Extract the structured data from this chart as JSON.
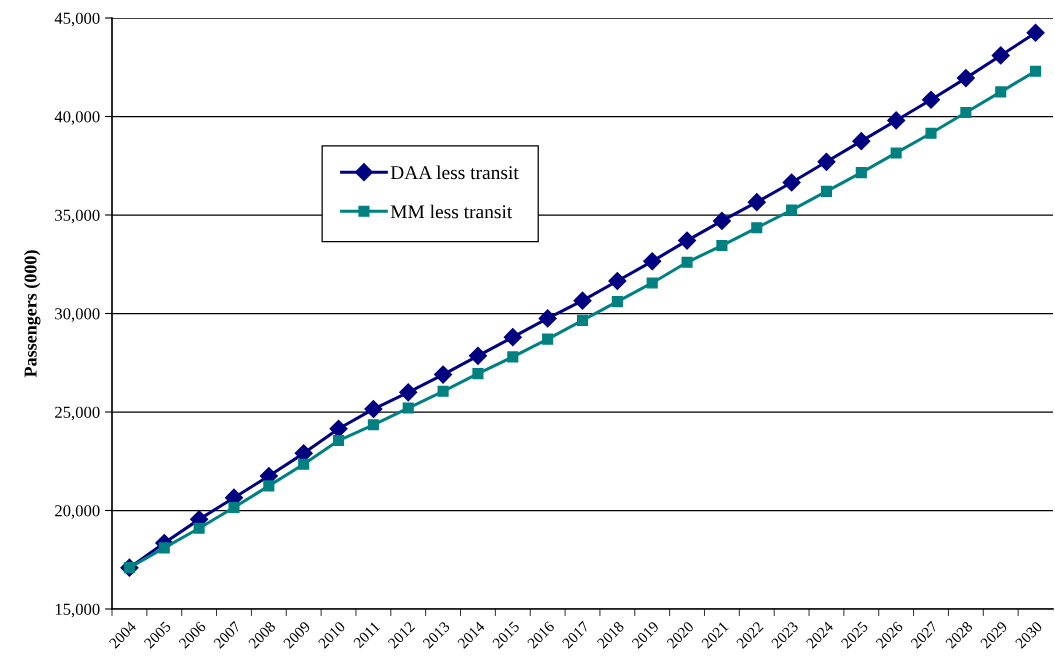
{
  "chart_data": {
    "type": "line",
    "ylabel": "Passengers (000)",
    "categories": [
      "2004",
      "2005",
      "2006",
      "2007",
      "2008",
      "2009",
      "2010",
      "2011",
      "2012",
      "2013",
      "2014",
      "2015",
      "2016",
      "2017",
      "2018",
      "2019",
      "2020",
      "2021",
      "2022",
      "2023",
      "2024",
      "2025",
      "2026",
      "2027",
      "2028",
      "2029",
      "2030"
    ],
    "series": [
      {
        "name": "DAA less transit",
        "color": "#000080",
        "marker": "diamond",
        "values": [
          17100,
          18350,
          19550,
          20650,
          21750,
          22900,
          24150,
          25150,
          26000,
          26900,
          27850,
          28800,
          29750,
          30650,
          31650,
          32650,
          33700,
          34700,
          35650,
          36650,
          37700,
          38750,
          39800,
          40850,
          41950,
          43100,
          44250
        ]
      },
      {
        "name": "MM less transit",
        "color": "#008080",
        "marker": "square",
        "values": [
          17100,
          18100,
          19100,
          20150,
          21250,
          22350,
          23550,
          24350,
          25200,
          26050,
          26950,
          27800,
          28700,
          29650,
          30600,
          31550,
          32600,
          33450,
          34350,
          35250,
          36200,
          37150,
          38150,
          39150,
          40200,
          41250,
          42300
        ]
      }
    ],
    "ylim": [
      15000,
      45000
    ],
    "yticks": [
      {
        "value": 15000,
        "label": "15,000"
      },
      {
        "value": 20000,
        "label": "20,000"
      },
      {
        "value": 25000,
        "label": "25,000"
      },
      {
        "value": 30000,
        "label": "30,000"
      },
      {
        "value": 35000,
        "label": "35,000"
      },
      {
        "value": 40000,
        "label": "40,000"
      },
      {
        "value": 45000,
        "label": "45,000"
      }
    ],
    "grid": "y",
    "legend": "top left",
    "line_style": "solid"
  }
}
